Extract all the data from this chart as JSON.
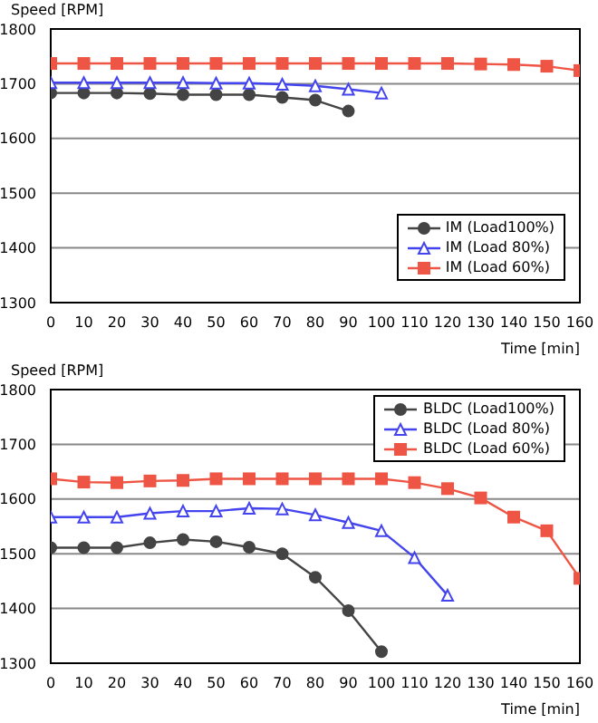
{
  "chart_data": [
    {
      "type": "line",
      "ylabel": "Speed [RPM]",
      "xlabel": "Time [min]",
      "xlim": [
        0,
        160
      ],
      "xticks": [
        0,
        10,
        20,
        30,
        40,
        50,
        60,
        70,
        80,
        90,
        100,
        110,
        120,
        130,
        140,
        150,
        160
      ],
      "ylim": [
        1300,
        1800
      ],
      "yticks": [
        1300,
        1400,
        1500,
        1600,
        1700,
        1800
      ],
      "grid": "y",
      "legend": "bottom right",
      "series": [
        {
          "name": "IM (Load100%)",
          "color": "#444444",
          "marker": "circle",
          "x": [
            0,
            10,
            20,
            30,
            40,
            50,
            60,
            70,
            80,
            90
          ],
          "values": [
            1683,
            1683,
            1683,
            1682,
            1680,
            1680,
            1680,
            1675,
            1670,
            1650
          ]
        },
        {
          "name": "IM (Load 80%)",
          "color": "#4444ee",
          "marker": "triangle",
          "x": [
            0,
            10,
            20,
            30,
            40,
            50,
            60,
            70,
            80,
            90,
            100
          ],
          "values": [
            1702,
            1702,
            1702,
            1702,
            1702,
            1701,
            1701,
            1699,
            1696,
            1690,
            1683
          ]
        },
        {
          "name": "IM (Load 60%)",
          "color": "#ee5544",
          "marker": "square",
          "x": [
            0,
            10,
            20,
            30,
            40,
            50,
            60,
            70,
            80,
            90,
            100,
            110,
            120,
            130,
            140,
            150,
            160
          ],
          "values": [
            1737,
            1737,
            1737,
            1737,
            1737,
            1737,
            1737,
            1737,
            1737,
            1737,
            1737,
            1737,
            1737,
            1736,
            1735,
            1732,
            1724
          ]
        }
      ]
    },
    {
      "type": "line",
      "ylabel": "Speed [RPM]",
      "xlabel": "Time [min]",
      "xlim": [
        0,
        160
      ],
      "xticks": [
        0,
        10,
        20,
        30,
        40,
        50,
        60,
        70,
        80,
        90,
        100,
        110,
        120,
        130,
        140,
        150,
        160
      ],
      "ylim": [
        1300,
        1800
      ],
      "yticks": [
        1300,
        1400,
        1500,
        1600,
        1700,
        1800
      ],
      "grid": "y",
      "legend": "top right",
      "series": [
        {
          "name": "BLDC (Load100%)",
          "color": "#444444",
          "marker": "circle",
          "x": [
            0,
            10,
            20,
            30,
            40,
            50,
            60,
            70,
            80,
            90,
            100
          ],
          "values": [
            1511,
            1511,
            1511,
            1520,
            1526,
            1522,
            1512,
            1500,
            1457,
            1396,
            1321
          ]
        },
        {
          "name": "BLDC (Load 80%)",
          "color": "#4444ee",
          "marker": "triangle",
          "x": [
            0,
            10,
            20,
            30,
            40,
            50,
            60,
            70,
            80,
            90,
            100,
            110,
            120
          ],
          "values": [
            1567,
            1567,
            1567,
            1574,
            1578,
            1578,
            1583,
            1582,
            1571,
            1557,
            1542,
            1493,
            1424
          ]
        },
        {
          "name": "BLDC (Load 60%)",
          "color": "#ee5544",
          "marker": "square",
          "x": [
            0,
            10,
            20,
            30,
            40,
            50,
            60,
            70,
            80,
            90,
            100,
            110,
            120,
            130,
            140,
            150,
            160
          ],
          "values": [
            1637,
            1631,
            1630,
            1633,
            1634,
            1637,
            1637,
            1637,
            1637,
            1637,
            1637,
            1630,
            1619,
            1602,
            1567,
            1542,
            1455
          ]
        }
      ]
    }
  ]
}
